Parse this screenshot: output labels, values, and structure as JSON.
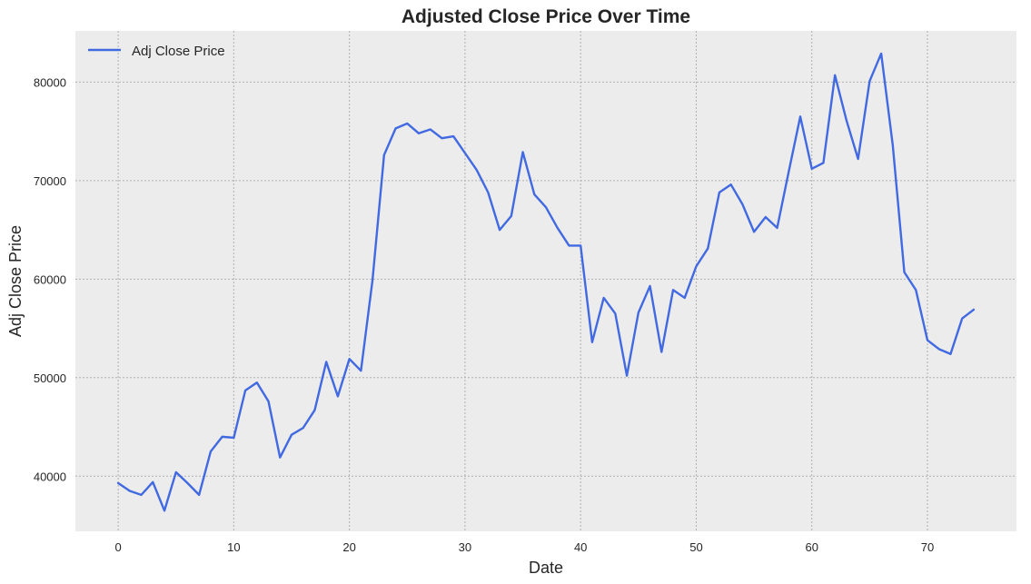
{
  "chart_data": {
    "type": "line",
    "title": "Adjusted Close Price Over Time",
    "xlabel": "Date",
    "ylabel": "Adj Close Price",
    "xlim": [
      -3.7,
      77.7
    ],
    "ylim": [
      34400,
      85200
    ],
    "xticks": [
      0,
      10,
      20,
      30,
      40,
      50,
      60,
      70
    ],
    "yticks": [
      40000,
      50000,
      60000,
      70000,
      80000
    ],
    "grid": true,
    "legend_position": "top-left",
    "background_color": "#ececec",
    "series": [
      {
        "name": "Adj Close Price",
        "color": "#4169e1",
        "x": [
          0,
          1,
          2,
          3,
          4,
          5,
          6,
          7,
          8,
          9,
          10,
          11,
          12,
          13,
          14,
          15,
          16,
          17,
          18,
          19,
          20,
          21,
          22,
          23,
          24,
          25,
          26,
          27,
          28,
          29,
          30,
          31,
          32,
          33,
          34,
          35,
          36,
          37,
          38,
          39,
          40,
          41,
          42,
          43,
          44,
          45,
          46,
          47,
          48,
          49,
          50,
          51,
          52,
          53,
          54,
          55,
          56,
          57,
          58,
          59,
          60,
          61,
          62,
          63,
          64,
          65,
          66,
          67,
          68,
          69,
          70,
          71,
          72,
          73,
          74
        ],
        "values": [
          39300,
          38500,
          38100,
          39400,
          36500,
          40400,
          39300,
          38100,
          42500,
          44000,
          43900,
          48700,
          49500,
          47600,
          41900,
          44200,
          44900,
          46700,
          51600,
          48100,
          51900,
          50700,
          59900,
          72600,
          75300,
          75800,
          74800,
          75200,
          74300,
          74500,
          72800,
          71100,
          68800,
          65000,
          66400,
          72900,
          68600,
          67300,
          65200,
          63400,
          63400,
          53600,
          58100,
          56500,
          50200,
          56600,
          59300,
          52600,
          58900,
          58100,
          61300,
          63100,
          68800,
          69600,
          67600,
          64800,
          66300,
          65200,
          70900,
          76500,
          71200,
          71800,
          80700,
          76100,
          72200,
          80100,
          82900,
          73600,
          60700,
          58900,
          53800,
          52900,
          52400,
          56000,
          56900
        ]
      }
    ]
  }
}
